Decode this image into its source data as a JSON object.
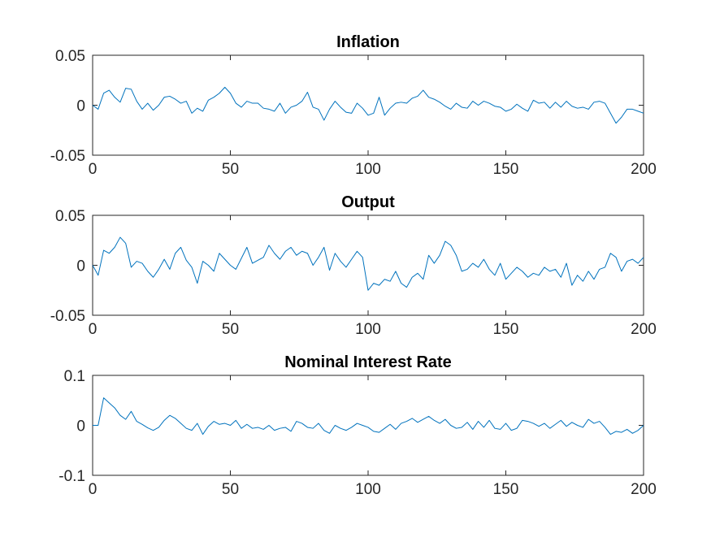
{
  "chart_data": [
    {
      "type": "line",
      "title": "Inflation",
      "xlabel": "",
      "ylabel": "",
      "xlim": [
        0,
        200
      ],
      "ylim": [
        -0.05,
        0.05
      ],
      "xticks": [
        0,
        50,
        100,
        150,
        200
      ],
      "xtick_labels": [
        "0",
        "50",
        "100",
        "150",
        "200"
      ],
      "yticks": [
        -0.05,
        0,
        0.05
      ],
      "ytick_labels": [
        "-0.05",
        "0",
        "0.05"
      ],
      "grid": false,
      "color": "#0072BD",
      "x": [
        0,
        2,
        4,
        6,
        8,
        10,
        12,
        14,
        16,
        18,
        20,
        22,
        24,
        26,
        28,
        30,
        32,
        34,
        36,
        38,
        40,
        42,
        44,
        46,
        48,
        50,
        52,
        54,
        56,
        58,
        60,
        62,
        64,
        66,
        68,
        70,
        72,
        74,
        76,
        78,
        80,
        82,
        84,
        86,
        88,
        90,
        92,
        94,
        96,
        98,
        100,
        102,
        104,
        106,
        108,
        110,
        112,
        114,
        116,
        118,
        120,
        122,
        124,
        126,
        128,
        130,
        132,
        134,
        136,
        138,
        140,
        142,
        144,
        146,
        148,
        150,
        152,
        154,
        156,
        158,
        160,
        162,
        164,
        166,
        168,
        170,
        172,
        174,
        176,
        178,
        180,
        182,
        184,
        186,
        188,
        190,
        192,
        194,
        196,
        198,
        200
      ],
      "values": [
        0,
        -0.004,
        0.012,
        0.015,
        0.008,
        0.003,
        0.017,
        0.016,
        0.004,
        -0.004,
        0.002,
        -0.005,
        0.0,
        0.008,
        0.009,
        0.006,
        0.002,
        0.004,
        -0.008,
        -0.003,
        -0.006,
        0.005,
        0.008,
        0.012,
        0.018,
        0.012,
        0.002,
        -0.002,
        0.004,
        0.002,
        0.002,
        -0.003,
        -0.004,
        -0.006,
        0.002,
        -0.008,
        -0.002,
        0.0,
        0.004,
        0.013,
        -0.002,
        -0.004,
        -0.015,
        -0.004,
        0.004,
        -0.002,
        -0.007,
        -0.008,
        0.002,
        -0.003,
        -0.01,
        -0.008,
        0.008,
        -0.01,
        -0.003,
        0.002,
        0.003,
        0.002,
        0.007,
        0.009,
        0.015,
        0.008,
        0.006,
        0.003,
        -0.001,
        -0.004,
        0.002,
        -0.002,
        -0.003,
        0.004,
        0.0,
        0.004,
        0.002,
        -0.001,
        -0.002,
        -0.006,
        -0.004,
        0.001,
        -0.003,
        -0.006,
        0.005,
        0.002,
        0.003,
        -0.003,
        0.003,
        -0.002,
        0.004,
        -0.001,
        -0.003,
        -0.002,
        -0.004,
        0.003,
        0.004,
        0.002,
        -0.008,
        -0.018,
        -0.012,
        -0.004,
        -0.004,
        -0.006,
        -0.008
      ]
    },
    {
      "type": "line",
      "title": "Output",
      "xlabel": "",
      "ylabel": "",
      "xlim": [
        0,
        200
      ],
      "ylim": [
        -0.05,
        0.05
      ],
      "xticks": [
        0,
        50,
        100,
        150,
        200
      ],
      "xtick_labels": [
        "0",
        "50",
        "100",
        "150",
        "200"
      ],
      "yticks": [
        -0.05,
        0,
        0.05
      ],
      "ytick_labels": [
        "-0.05",
        "0",
        "0.05"
      ],
      "grid": false,
      "color": "#0072BD",
      "x": [
        0,
        2,
        4,
        6,
        8,
        10,
        12,
        14,
        16,
        18,
        20,
        22,
        24,
        26,
        28,
        30,
        32,
        34,
        36,
        38,
        40,
        42,
        44,
        46,
        48,
        50,
        52,
        54,
        56,
        58,
        60,
        62,
        64,
        66,
        68,
        70,
        72,
        74,
        76,
        78,
        80,
        82,
        84,
        86,
        88,
        90,
        92,
        94,
        96,
        98,
        100,
        102,
        104,
        106,
        108,
        110,
        112,
        114,
        116,
        118,
        120,
        122,
        124,
        126,
        128,
        130,
        132,
        134,
        136,
        138,
        140,
        142,
        144,
        146,
        148,
        150,
        152,
        154,
        156,
        158,
        160,
        162,
        164,
        166,
        168,
        170,
        172,
        174,
        176,
        178,
        180,
        182,
        184,
        186,
        188,
        190,
        192,
        194,
        196,
        198,
        200
      ],
      "values": [
        0,
        -0.01,
        0.015,
        0.012,
        0.018,
        0.028,
        0.022,
        -0.002,
        0.004,
        0.002,
        -0.006,
        -0.012,
        -0.004,
        0.006,
        -0.004,
        0.012,
        0.018,
        0.005,
        -0.002,
        -0.018,
        0.004,
        0.0,
        -0.006,
        0.012,
        0.006,
        0.0,
        -0.004,
        0.007,
        0.018,
        0.002,
        0.005,
        0.008,
        0.02,
        0.012,
        0.006,
        0.014,
        0.018,
        0.01,
        0.014,
        0.012,
        0.0,
        0.008,
        0.018,
        -0.005,
        0.012,
        0.004,
        -0.002,
        0.006,
        0.014,
        0.008,
        -0.025,
        -0.018,
        -0.02,
        -0.014,
        -0.016,
        -0.006,
        -0.018,
        -0.022,
        -0.012,
        -0.008,
        -0.014,
        0.01,
        0.002,
        0.01,
        0.024,
        0.02,
        0.01,
        -0.006,
        -0.004,
        0.002,
        -0.002,
        0.006,
        -0.004,
        -0.01,
        0.002,
        -0.014,
        -0.008,
        -0.002,
        -0.006,
        -0.012,
        -0.008,
        -0.01,
        -0.002,
        -0.006,
        -0.004,
        -0.012,
        0.002,
        -0.02,
        -0.01,
        -0.016,
        -0.006,
        -0.014,
        -0.004,
        -0.002,
        0.012,
        0.008,
        -0.006,
        0.004,
        0.006,
        0.002,
        0.008
      ]
    },
    {
      "type": "line",
      "title": "Nominal Interest Rate",
      "xlabel": "",
      "ylabel": "",
      "xlim": [
        0,
        200
      ],
      "ylim": [
        -0.1,
        0.1
      ],
      "xticks": [
        0,
        50,
        100,
        150,
        200
      ],
      "xtick_labels": [
        "0",
        "50",
        "100",
        "150",
        "200"
      ],
      "yticks": [
        -0.1,
        0,
        0.1
      ],
      "ytick_labels": [
        "-0.1",
        "0",
        "0.1"
      ],
      "grid": false,
      "color": "#0072BD",
      "x": [
        0,
        2,
        4,
        6,
        8,
        10,
        12,
        14,
        16,
        18,
        20,
        22,
        24,
        26,
        28,
        30,
        32,
        34,
        36,
        38,
        40,
        42,
        44,
        46,
        48,
        50,
        52,
        54,
        56,
        58,
        60,
        62,
        64,
        66,
        68,
        70,
        72,
        74,
        76,
        78,
        80,
        82,
        84,
        86,
        88,
        90,
        92,
        94,
        96,
        98,
        100,
        102,
        104,
        106,
        108,
        110,
        112,
        114,
        116,
        118,
        120,
        122,
        124,
        126,
        128,
        130,
        132,
        134,
        136,
        138,
        140,
        142,
        144,
        146,
        148,
        150,
        152,
        154,
        156,
        158,
        160,
        162,
        164,
        166,
        168,
        170,
        172,
        174,
        176,
        178,
        180,
        182,
        184,
        186,
        188,
        190,
        192,
        194,
        196,
        198,
        200
      ],
      "values": [
        0,
        0.0,
        0.055,
        0.045,
        0.035,
        0.02,
        0.012,
        0.028,
        0.008,
        0.002,
        -0.005,
        -0.01,
        -0.004,
        0.01,
        0.02,
        0.014,
        0.004,
        -0.006,
        -0.01,
        0.004,
        -0.018,
        -0.002,
        0.008,
        0.002,
        0.004,
        0.0,
        0.01,
        -0.006,
        0.002,
        -0.006,
        -0.004,
        -0.008,
        0.0,
        -0.01,
        -0.006,
        -0.004,
        -0.012,
        0.008,
        0.004,
        -0.004,
        -0.006,
        0.004,
        -0.01,
        -0.016,
        0.0,
        -0.006,
        -0.01,
        -0.004,
        0.004,
        0.0,
        -0.004,
        -0.012,
        -0.014,
        -0.006,
        0.002,
        -0.008,
        0.004,
        0.008,
        0.014,
        0.006,
        0.012,
        0.018,
        0.01,
        0.004,
        0.012,
        0.0,
        -0.006,
        -0.004,
        0.006,
        -0.008,
        0.008,
        -0.004,
        0.01,
        -0.006,
        -0.008,
        0.004,
        -0.01,
        -0.006,
        0.01,
        0.008,
        0.004,
        -0.002,
        0.004,
        -0.006,
        0.002,
        0.01,
        -0.002,
        0.006,
        0.0,
        -0.004,
        0.012,
        0.004,
        0.008,
        -0.004,
        -0.018,
        -0.012,
        -0.014,
        -0.008,
        -0.016,
        -0.01,
        0.0
      ]
    }
  ]
}
